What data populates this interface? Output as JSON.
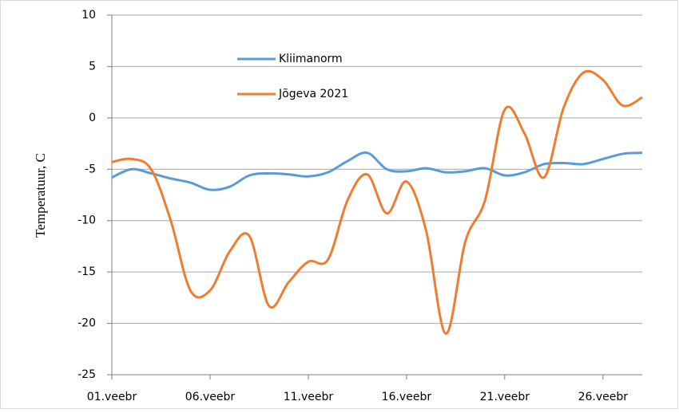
{
  "chart_data": {
    "type": "line",
    "y_label": "Temperatuur, C",
    "categories": [
      "01.veebr",
      null,
      null,
      null,
      null,
      "06.veebr",
      null,
      null,
      null,
      null,
      "11.veebr",
      null,
      null,
      null,
      null,
      "16.veebr",
      null,
      null,
      null,
      null,
      "21.veebr",
      null,
      null,
      null,
      null,
      "26.veebr",
      null,
      null
    ],
    "series": [
      {
        "name": "Kliimanorm",
        "color": "#5b9bd5",
        "values": [
          -5.8,
          -5.0,
          -5.4,
          -5.9,
          -6.3,
          -7.0,
          -6.7,
          -5.6,
          -5.4,
          -5.5,
          -5.7,
          -5.3,
          -4.2,
          -3.4,
          -5.0,
          -5.2,
          -4.9,
          -5.3,
          -5.2,
          -4.9,
          -5.6,
          -5.3,
          -4.5,
          -4.4,
          -4.5,
          -4.0,
          -3.5,
          -3.4
        ]
      },
      {
        "name": "Jõgeva 2021",
        "color": "#ed7d31",
        "values": [
          -4.3,
          -4.0,
          -5.0,
          -10.0,
          -16.8,
          -16.8,
          -13.0,
          -11.5,
          -18.3,
          -16.0,
          -14.0,
          -13.8,
          -8.0,
          -5.5,
          -9.3,
          -6.2,
          -11.0,
          -21.0,
          -12.0,
          -8.0,
          0.8,
          -1.5,
          -5.8,
          1.0,
          4.4,
          3.7,
          1.2,
          2.0
        ]
      }
    ],
    "ylim": [
      -25,
      10
    ],
    "yticks": [
      -25,
      -20,
      -15,
      -10,
      -5,
      0,
      5,
      10
    ],
    "grid": true,
    "legend": "top-left"
  }
}
